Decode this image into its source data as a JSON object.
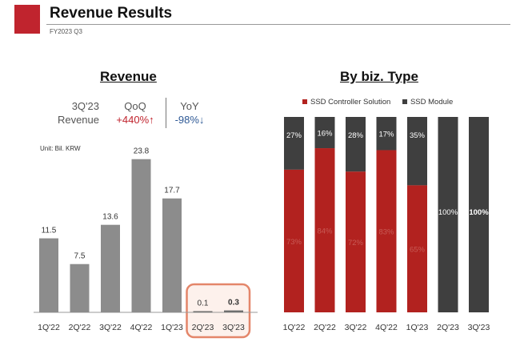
{
  "header": {
    "title": "Revenue Results",
    "subtitle": "FY2023 Q3"
  },
  "revenue_panel": {
    "title": "Revenue",
    "summary_label_line1": "3Q'23",
    "summary_label_line2": "Revenue",
    "qoq_label": "QoQ",
    "qoq_value": "+440%↑",
    "yoy_label": "YoY",
    "yoy_value": "-98%↓",
    "unit": "Unit: Bil. KRW"
  },
  "type_panel": {
    "title": "By biz. Type"
  },
  "colors": {
    "revenue_bar": "#8c8c8c",
    "revenue_bar_dark": "#6e6e6e",
    "controller": "#b2221f",
    "module": "#3f3f3f",
    "highlight_border": "#e4866a",
    "highlight_fill": "#fdf1ec"
  },
  "chart_data": [
    {
      "type": "bar",
      "title": "Revenue",
      "categories": [
        "1Q'22",
        "2Q'22",
        "3Q'22",
        "4Q'22",
        "1Q'23",
        "2Q'23",
        "3Q'23"
      ],
      "values": [
        11.5,
        7.5,
        13.6,
        23.8,
        17.7,
        0.1,
        0.3
      ],
      "value_labels": [
        "11.5",
        "7.5",
        "13.6",
        "23.8",
        "17.7",
        "0.1",
        "0.3"
      ],
      "highlighted_categories": [
        "2Q'23",
        "3Q'23"
      ],
      "ylim": [
        0,
        27
      ],
      "grid": false
    },
    {
      "type": "bar",
      "stacked": true,
      "percent": true,
      "title": "By biz. Type",
      "categories": [
        "1Q'22",
        "2Q'22",
        "3Q'22",
        "4Q'22",
        "1Q'23",
        "2Q'23",
        "3Q'23"
      ],
      "series": [
        {
          "name": "SSD Controller Solution",
          "values": [
            73,
            84,
            72,
            83,
            65,
            0,
            0
          ],
          "labels": [
            "73%",
            "84%",
            "72%",
            "83%",
            "65%",
            "",
            ""
          ]
        },
        {
          "name": "SSD Module",
          "values": [
            27,
            16,
            28,
            17,
            35,
            100,
            100
          ],
          "labels": [
            "27%",
            "16%",
            "28%",
            "17%",
            "35%",
            "100%",
            "100%"
          ]
        }
      ],
      "ylim": [
        0,
        100
      ],
      "legend": "top",
      "grid": false
    }
  ]
}
